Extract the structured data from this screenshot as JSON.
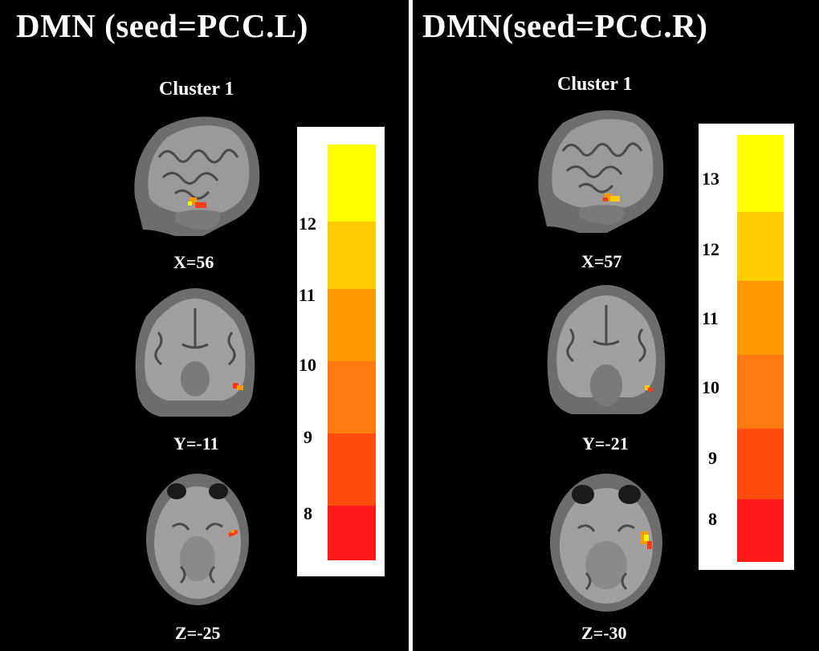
{
  "colors": {
    "background": "#000000",
    "divider": "#ffffff",
    "text": "#ffffff",
    "activation_low": "#ff1a1a",
    "activation_high": "#ffff00",
    "scale": [
      "#ffff00",
      "#ffcc00",
      "#ff9900",
      "#ff7a10",
      "#ff4d10",
      "#ff1a1a"
    ]
  },
  "panels": [
    {
      "title": "DMN (seed=PCC.L)",
      "cluster_label": "Cluster 1",
      "slices": [
        {
          "view": "sagittal",
          "label": "X=56"
        },
        {
          "view": "coronal",
          "label": "Y=-11"
        },
        {
          "view": "axial",
          "label": "Z=-25"
        }
      ],
      "colorbar": {
        "ticks": [
          "12",
          "11",
          "10",
          "9",
          "8"
        ]
      }
    },
    {
      "title": "DMN(seed=PCC.R)",
      "cluster_label": "Cluster 1",
      "slices": [
        {
          "view": "sagittal",
          "label": "X=57"
        },
        {
          "view": "coronal",
          "label": "Y=-21"
        },
        {
          "view": "axial",
          "label": "Z=-30"
        }
      ],
      "colorbar": {
        "ticks": [
          "13",
          "12",
          "11",
          "10",
          "9",
          "8"
        ]
      }
    }
  ]
}
